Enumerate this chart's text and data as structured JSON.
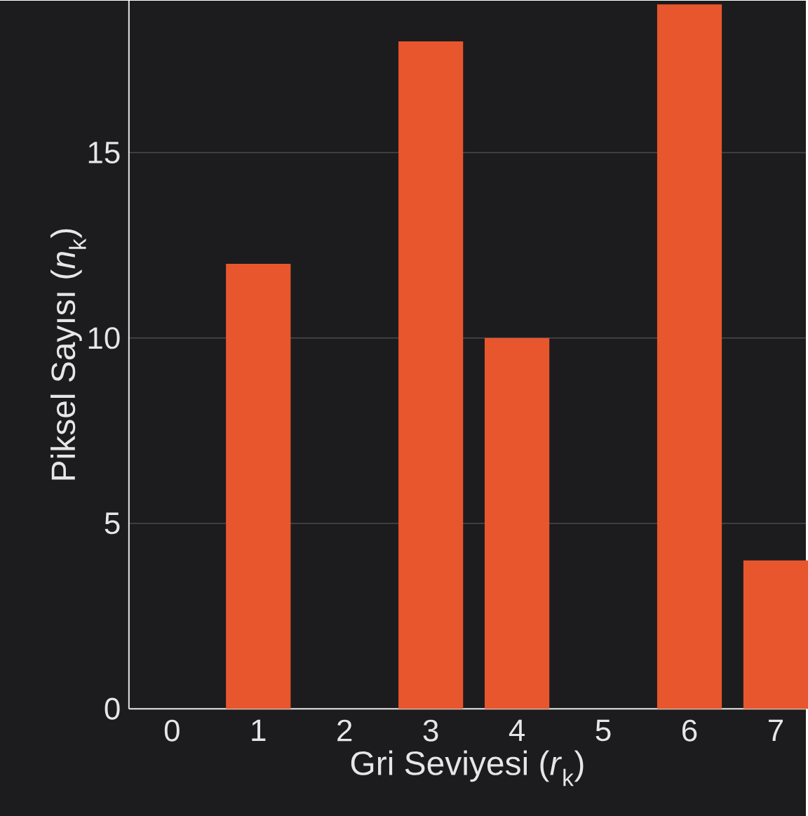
{
  "chart_data": {
    "type": "bar",
    "xlabel": "Gri Seviyesi (*r*$_{k}$)",
    "ylabel": "Piksel Sayısı (*n*$_{k}$)",
    "categories": [
      "0",
      "1",
      "2",
      "3",
      "4",
      "5",
      "6",
      "7"
    ],
    "values": [
      0,
      12,
      0,
      18,
      10,
      0,
      19,
      4
    ],
    "color": "#e8562e",
    "ylim": [
      0,
      19.1
    ],
    "yticks": [
      0,
      5,
      10,
      15
    ],
    "grid": "y"
  }
}
